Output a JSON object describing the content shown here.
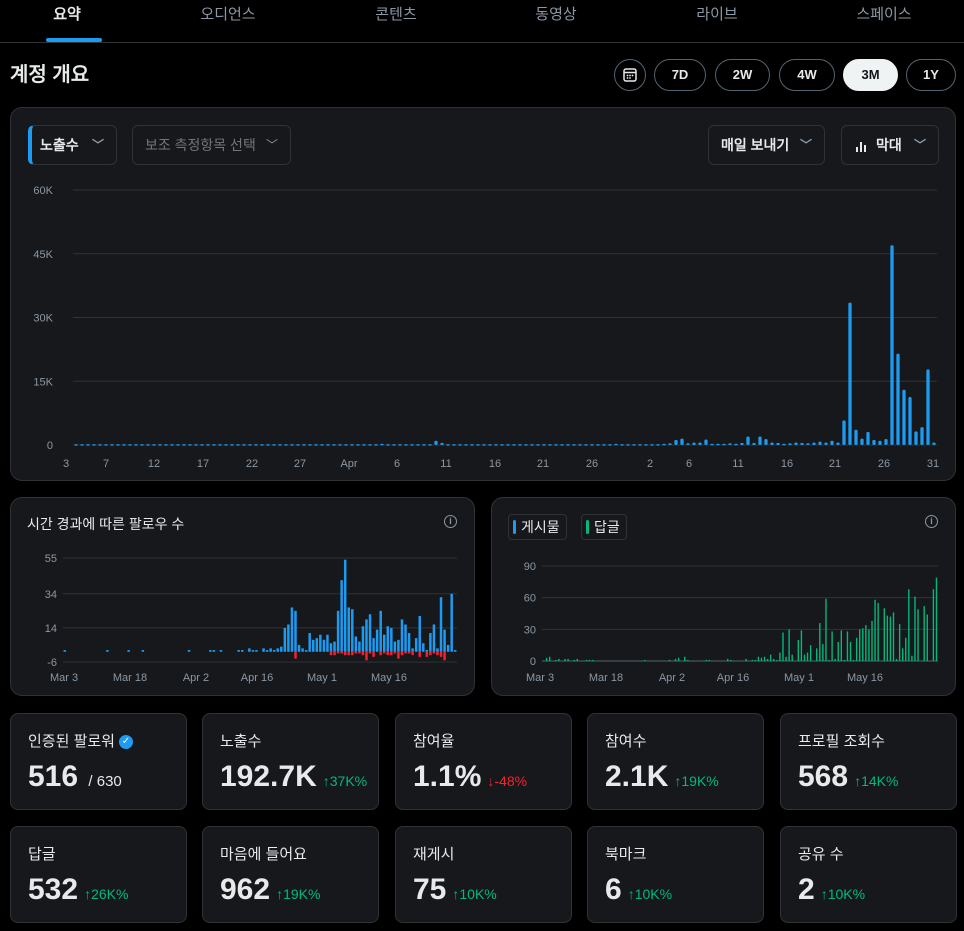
{
  "tabs": [
    "요약",
    "오디언스",
    "콘텐츠",
    "동영상",
    "라이브",
    "스페이스"
  ],
  "active_tab": 0,
  "header": {
    "title": "계정 개요"
  },
  "range": {
    "buttons": [
      "7D",
      "2W",
      "4W",
      "3M",
      "1Y"
    ],
    "active": "3M",
    "calendar_icon": "calendar-icon"
  },
  "main_chart": {
    "metric_select": "노출수",
    "secondary_select": "보조 측정항목 선택",
    "export_select": "매일 보내기",
    "type_select": "막대",
    "chart_data": {
      "type": "bar",
      "ylim": [
        0,
        60000
      ],
      "yticks": [
        "0",
        "15K",
        "30K",
        "45K",
        "60K"
      ],
      "xticks": [
        "3",
        "7",
        "12",
        "17",
        "22",
        "27",
        "Apr",
        "6",
        "11",
        "16",
        "21",
        "26",
        "2",
        "6",
        "11",
        "16",
        "21",
        "26",
        "31"
      ],
      "color": "#1d9bf0",
      "values": [
        200,
        200,
        200,
        200,
        200,
        200,
        200,
        200,
        200,
        200,
        200,
        200,
        200,
        200,
        200,
        200,
        200,
        200,
        200,
        200,
        200,
        200,
        200,
        200,
        200,
        200,
        200,
        200,
        200,
        200,
        200,
        200,
        200,
        200,
        200,
        200,
        200,
        200,
        200,
        200,
        200,
        200,
        200,
        200,
        200,
        200,
        200,
        200,
        200,
        200,
        200,
        300,
        200,
        200,
        200,
        200,
        200,
        200,
        200,
        200,
        1000,
        500,
        200,
        200,
        200,
        200,
        200,
        200,
        200,
        200,
        200,
        200,
        200,
        200,
        200,
        200,
        200,
        200,
        200,
        200,
        200,
        200,
        200,
        200,
        200,
        200,
        200,
        200,
        200,
        200,
        300,
        200,
        200,
        200,
        200,
        200,
        200,
        200,
        300,
        400,
        1200,
        1500,
        400,
        600,
        600,
        1300,
        300,
        300,
        300,
        400,
        300,
        500,
        2000,
        500,
        2000,
        1400,
        600,
        500,
        300,
        400,
        600,
        500,
        400,
        600,
        800,
        600,
        1000,
        600,
        5800,
        33500,
        3600,
        1500,
        3100,
        1200,
        1000,
        1400,
        47000,
        21500,
        13000,
        11300,
        3200,
        4200,
        17800,
        600
      ]
    }
  },
  "followers_chart": {
    "title": "시간 경과에 따른 팔로우 수",
    "chart_data": {
      "type": "bar",
      "ylim": [
        -6,
        55
      ],
      "yticks": [
        "55",
        "34",
        "14",
        "-6"
      ],
      "xticks": [
        "Mar 3",
        "Mar 18",
        "Apr 2",
        "Apr 16",
        "May 1",
        "May 16"
      ],
      "series": [
        {
          "name": "",
          "color": "#1d9bf0",
          "values": [
            1,
            0,
            0,
            0,
            0,
            0,
            0,
            0,
            0,
            0,
            0,
            0,
            1,
            0,
            0,
            0,
            0,
            0,
            1,
            0,
            0,
            0,
            1,
            0,
            0,
            0,
            0,
            0,
            0,
            0,
            0,
            0,
            0,
            0,
            0,
            1,
            0,
            0,
            0,
            0,
            0,
            1,
            1,
            0,
            1,
            0,
            0,
            0,
            0,
            1,
            1,
            0,
            2,
            1,
            1,
            0,
            2,
            1,
            2,
            1,
            2,
            3,
            14,
            16,
            26,
            24,
            4,
            2,
            1,
            11,
            7,
            8,
            10,
            7,
            10,
            5,
            6,
            24,
            42,
            54,
            26,
            25,
            9,
            6,
            15,
            19,
            22,
            8,
            13,
            24,
            10,
            15,
            14,
            6,
            7,
            19,
            16,
            11,
            2,
            8,
            21,
            5,
            1,
            11,
            16,
            2,
            32,
            13,
            4,
            34,
            1
          ],
          "neg": [
            0,
            0,
            0,
            0,
            0,
            0,
            0,
            0,
            0,
            0,
            0,
            0,
            0,
            0,
            0,
            0,
            0,
            0,
            0,
            0,
            0,
            0,
            0,
            0,
            0,
            0,
            0,
            0,
            0,
            0,
            0,
            0,
            0,
            0,
            0,
            0,
            0,
            0,
            0,
            0,
            0,
            0,
            0,
            0,
            0,
            0,
            0,
            0,
            0,
            0,
            0,
            0,
            0,
            0,
            0,
            0,
            0,
            0,
            0,
            0,
            0,
            0,
            0,
            0,
            0,
            -4,
            0,
            0,
            0,
            0,
            0,
            0,
            0,
            0,
            0,
            -2,
            -2,
            -1,
            -1,
            -2,
            -2,
            -2,
            -1,
            -1,
            -2,
            -5,
            -1,
            -3,
            0,
            -2,
            -1,
            -2,
            -2,
            -1,
            -4,
            -2,
            -1,
            -1,
            -2,
            0,
            -3,
            0,
            -3,
            -2,
            -1,
            -2,
            -3,
            -5,
            0,
            0
          ]
        }
      ]
    }
  },
  "posts_chart": {
    "legend": [
      {
        "label": "게시물",
        "color": "#1d9bf0"
      },
      {
        "label": "답글",
        "color": "#00ba7c"
      }
    ],
    "chart_data": {
      "type": "bar",
      "ylim": [
        0,
        90
      ],
      "yticks": [
        "90",
        "60",
        "30",
        "0"
      ],
      "xticks": [
        "Mar 3",
        "Mar 18",
        "Apr 2",
        "Apr 16",
        "May 1",
        "May 16"
      ],
      "values": [
        0,
        3,
        4,
        0,
        1,
        2,
        0,
        2,
        2,
        0,
        1,
        2,
        0,
        0,
        1,
        1,
        1,
        0,
        0,
        0,
        0,
        0,
        0,
        0,
        0,
        0,
        0,
        0,
        0,
        0,
        0,
        0,
        0,
        1,
        0,
        0,
        0,
        0,
        0,
        0,
        0,
        1,
        0,
        2,
        3,
        0,
        4,
        1,
        0,
        0,
        0,
        0,
        0,
        1,
        1,
        0,
        0,
        0,
        0,
        0,
        2,
        1,
        0,
        0,
        0,
        0,
        2,
        0,
        1,
        1,
        4,
        3,
        4,
        2,
        6,
        2,
        1,
        8,
        27,
        4,
        30,
        6,
        0,
        20,
        29,
        6,
        8,
        15,
        0,
        12,
        36,
        16,
        59,
        1,
        28,
        2,
        18,
        29,
        1,
        28,
        18,
        1,
        22,
        30,
        31,
        34,
        30,
        38,
        58,
        55,
        0,
        50,
        43,
        42,
        46,
        2,
        35,
        12,
        22,
        68,
        5,
        61,
        49,
        0,
        52,
        44,
        0,
        68,
        79
      ]
    }
  },
  "stats_row1": [
    {
      "label": "인증된 팔로워",
      "value": "516",
      "sub": "/ 630",
      "delta": "",
      "verified": true
    },
    {
      "label": "노출수",
      "value": "192.7K",
      "delta": "↑37K%",
      "dir": "up"
    },
    {
      "label": "참여율",
      "value": "1.1%",
      "delta": "↓-48%",
      "dir": "down"
    },
    {
      "label": "참여수",
      "value": "2.1K",
      "delta": "↑19K%",
      "dir": "up"
    },
    {
      "label": "프로필 조회수",
      "value": "568",
      "delta": "↑14K%",
      "dir": "up"
    }
  ],
  "stats_row2": [
    {
      "label": "답글",
      "value": "532",
      "delta": "↑26K%",
      "dir": "up"
    },
    {
      "label": "마음에 들어요",
      "value": "962",
      "delta": "↑19K%",
      "dir": "up"
    },
    {
      "label": "재게시",
      "value": "75",
      "delta": "↑10K%",
      "dir": "up"
    },
    {
      "label": "북마크",
      "value": "6",
      "delta": "↑10K%",
      "dir": "up"
    },
    {
      "label": "공유 수",
      "value": "2",
      "delta": "↑10K%",
      "dir": "up"
    }
  ]
}
